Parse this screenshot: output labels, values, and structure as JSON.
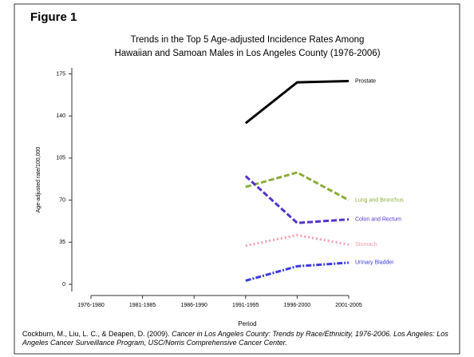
{
  "figure_label": "Figure 1",
  "source": {
    "authors": "Cockburn, M., Liu, L. C., & Deapen, D. (2009). ",
    "title": "Cancer in Los Angeles County: Trends by Race/Ethnicity, 1976-2006. Los Angeles: Los Angeles Cancer Surveillance Program, USC/Norris Comprehensive Cancer Center."
  },
  "chart_data": {
    "type": "line",
    "title": "Trends in the Top 5 Age-adjusted Incidence Rates Among",
    "subtitle": "Hawaiian and Samoan Males in Los Angeles County (1976-2006)",
    "x_label": "Period",
    "y_label": "Age-adjusted rate/100,000",
    "categories": [
      "1976-1980",
      "1981-1985",
      "1986-1990",
      "1991-1995",
      "1996-2000",
      "2001-2005"
    ],
    "ylim": [
      -6,
      180
    ],
    "yticks": [
      0,
      35,
      70,
      105,
      140,
      175
    ],
    "grid": false,
    "series": [
      {
        "name": "Prostate",
        "color": "#000000",
        "dash": "solid",
        "values": [
          null,
          null,
          null,
          134,
          168,
          169
        ]
      },
      {
        "name": "Lung and Bronchus",
        "color": "#8aad3a",
        "dash": "dashed",
        "values": [
          null,
          null,
          null,
          81,
          93,
          70
        ]
      },
      {
        "name": "Colon and Rectum",
        "color": "#5533cc",
        "dash": "dashed",
        "values": [
          null,
          null,
          null,
          90,
          51,
          54
        ]
      },
      {
        "name": "Stomach",
        "color": "#f3a0b0",
        "dash": "dotted",
        "values": [
          null,
          null,
          null,
          32,
          41,
          33
        ]
      },
      {
        "name": "Urinary Bladder",
        "color": "#3a3ae0",
        "dash": "dashdot",
        "values": [
          null,
          null,
          null,
          3,
          15,
          18
        ]
      }
    ]
  }
}
